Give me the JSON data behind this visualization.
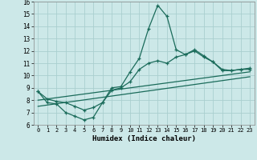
{
  "xlabel": "Humidex (Indice chaleur)",
  "ylabel": "",
  "background_color": "#cce8e8",
  "grid_color": "#aacfcf",
  "line_color": "#1a6b5a",
  "xlim": [
    -0.5,
    23.5
  ],
  "ylim": [
    6,
    16
  ],
  "xticks": [
    0,
    1,
    2,
    3,
    4,
    5,
    6,
    7,
    8,
    9,
    10,
    11,
    12,
    13,
    14,
    15,
    16,
    17,
    18,
    19,
    20,
    21,
    22,
    23
  ],
  "yticks": [
    6,
    7,
    8,
    9,
    10,
    11,
    12,
    13,
    14,
    15,
    16
  ],
  "line1_x": [
    0,
    1,
    2,
    3,
    4,
    5,
    6,
    7,
    8,
    9,
    10,
    11,
    12,
    13,
    14,
    15,
    16,
    17,
    18,
    19,
    20,
    21,
    22,
    23
  ],
  "line1_y": [
    8.7,
    7.8,
    7.7,
    7.0,
    6.7,
    6.4,
    6.6,
    7.8,
    9.0,
    9.1,
    10.3,
    11.4,
    13.8,
    15.7,
    14.8,
    12.1,
    11.7,
    12.1,
    11.6,
    11.1,
    10.4,
    10.4,
    10.5,
    10.6
  ],
  "line2_x": [
    0,
    1,
    2,
    3,
    4,
    5,
    6,
    7,
    8,
    9,
    10,
    11,
    12,
    13,
    14,
    15,
    16,
    17,
    18,
    19,
    20,
    21,
    22,
    23
  ],
  "line2_y": [
    8.7,
    8.1,
    7.9,
    7.8,
    7.5,
    7.2,
    7.4,
    7.8,
    8.8,
    9.0,
    9.5,
    10.5,
    11.0,
    11.2,
    11.0,
    11.5,
    11.7,
    12.0,
    11.5,
    11.1,
    10.5,
    10.4,
    10.5,
    10.5
  ],
  "line3_x": [
    0,
    23
  ],
  "line3_y": [
    8.0,
    10.3
  ],
  "line4_x": [
    0,
    23
  ],
  "line4_y": [
    7.5,
    9.9
  ]
}
